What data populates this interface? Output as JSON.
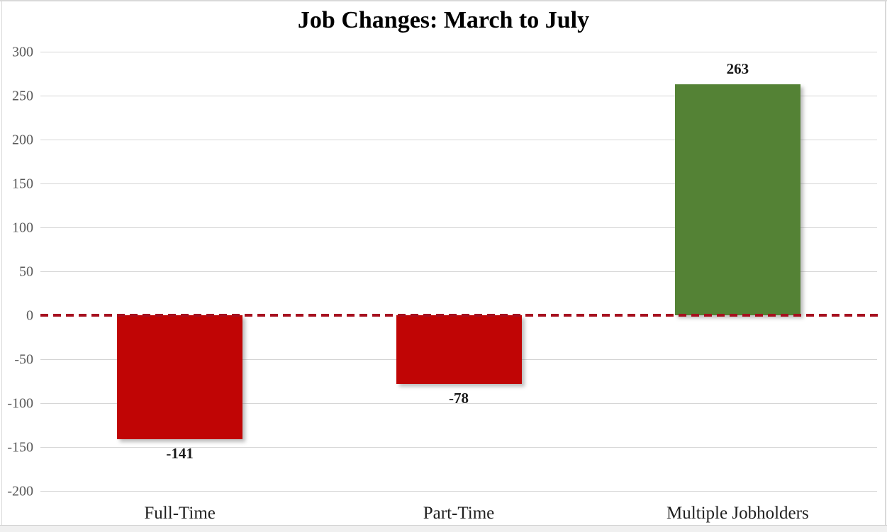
{
  "title": "Job Changes: March to July",
  "chart_data": {
    "type": "bar",
    "title": "Job Changes: March to July",
    "categories": [
      "Full-Time",
      "Part-Time",
      "Multiple Jobholders"
    ],
    "values": [
      -141,
      -78,
      263
    ],
    "value_labels": [
      "-141",
      "-78",
      "263"
    ],
    "bar_colors": [
      "#c00505",
      "#c00505",
      "#548235"
    ],
    "xlabel": "",
    "ylabel": "",
    "ylim": [
      -200,
      300
    ],
    "y_ticks": [
      300,
      250,
      200,
      150,
      100,
      50,
      0,
      -50,
      -100,
      -150,
      -200
    ],
    "grid": true,
    "legend": "none",
    "zero_line": {
      "style": "dashed",
      "color": "#a6101f"
    },
    "colors": {
      "negative_bar": "#c00505",
      "positive_bar": "#548235",
      "gridline": "#d5d5d5",
      "tick_label": "#595959",
      "category_label": "#1f1f1f",
      "title": "#000000",
      "zero_dash": "#a6101f",
      "frame": "#d9d9d9",
      "bottom_strip": "#f0f0f0"
    }
  }
}
